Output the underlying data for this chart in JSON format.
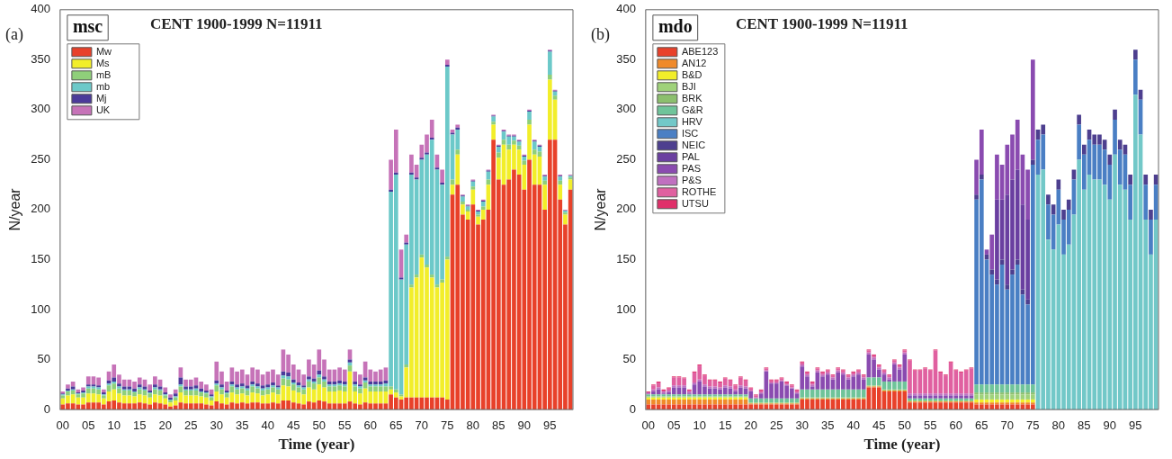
{
  "chart_data": [
    {
      "type": "bar",
      "title": "CENT 1900-1999 N=11911",
      "xlabel": "Time (year)",
      "ylabel": "N/year",
      "legend_title": "msc",
      "annotations": [
        "(a)"
      ],
      "stacked": true,
      "legend": "top left",
      "ylim": [
        0,
        400
      ],
      "yticks": [
        0,
        50,
        100,
        150,
        200,
        250,
        300,
        350,
        400
      ],
      "categories": [
        "00",
        null,
        null,
        null,
        null,
        "05",
        null,
        null,
        null,
        null,
        "10",
        null,
        null,
        null,
        null,
        "15",
        null,
        null,
        null,
        null,
        "20",
        null,
        null,
        null,
        null,
        "25",
        null,
        null,
        null,
        null,
        "30",
        null,
        null,
        null,
        null,
        "35",
        null,
        null,
        null,
        null,
        "40",
        null,
        null,
        null,
        null,
        "45",
        null,
        null,
        null,
        null,
        "50",
        null,
        null,
        null,
        null,
        "55",
        null,
        null,
        null,
        null,
        "60",
        null,
        null,
        null,
        null,
        "65",
        null,
        null,
        null,
        null,
        "70",
        null,
        null,
        null,
        null,
        "75",
        null,
        null,
        null,
        null,
        "80",
        null,
        null,
        null,
        null,
        "85",
        null,
        null,
        null,
        null,
        "90",
        null,
        null,
        null,
        null,
        "95",
        null,
        null,
        null,
        null
      ],
      "series": [
        {
          "name": "Mw",
          "color": "#e8412a",
          "values": [
            5,
            6,
            6,
            5,
            5,
            7,
            7,
            7,
            5,
            8,
            9,
            7,
            6,
            6,
            6,
            7,
            6,
            5,
            7,
            6,
            5,
            3,
            4,
            7,
            6,
            6,
            6,
            6,
            5,
            4,
            8,
            6,
            5,
            7,
            6,
            7,
            6,
            7,
            7,
            6,
            6,
            7,
            6,
            9,
            9,
            7,
            6,
            5,
            8,
            7,
            9,
            8,
            6,
            6,
            6,
            6,
            8,
            6,
            5,
            7,
            6,
            6,
            6,
            6,
            15,
            12,
            10,
            12,
            12,
            12,
            12,
            12,
            12,
            12,
            12,
            10,
            215,
            225,
            195,
            190,
            205,
            185,
            190,
            200,
            270,
            230,
            225,
            230,
            240,
            235,
            220,
            250,
            225,
            225,
            200,
            270,
            270,
            210,
            185,
            220
          ]
        },
        {
          "name": "Ms",
          "color": "#f2ee2a",
          "values": [
            6,
            8,
            9,
            7,
            7,
            9,
            9,
            8,
            6,
            10,
            11,
            9,
            8,
            8,
            7,
            8,
            8,
            7,
            8,
            8,
            6,
            4,
            5,
            10,
            8,
            8,
            8,
            7,
            7,
            5,
            10,
            9,
            7,
            10,
            9,
            9,
            8,
            10,
            9,
            8,
            9,
            10,
            9,
            15,
            14,
            12,
            11,
            10,
            14,
            13,
            16,
            14,
            12,
            12,
            13,
            12,
            30,
            12,
            11,
            14,
            12,
            12,
            12,
            12,
            5,
            5,
            3,
            30,
            110,
            120,
            140,
            130,
            120,
            110,
            115,
            140,
            10,
            30,
            10,
            8,
            15,
            8,
            10,
            25,
            15,
            22,
            40,
            30,
            25,
            25,
            25,
            35,
            30,
            28,
            25,
            60,
            40,
            15,
            10,
            10
          ]
        },
        {
          "name": "mB",
          "color": "#8fcf7a",
          "values": [
            3,
            4,
            4,
            3,
            4,
            5,
            5,
            5,
            3,
            6,
            6,
            5,
            5,
            5,
            4,
            5,
            5,
            4,
            5,
            5,
            3,
            2,
            3,
            6,
            5,
            5,
            5,
            4,
            4,
            3,
            6,
            5,
            4,
            6,
            5,
            5,
            5,
            6,
            5,
            5,
            5,
            5,
            5,
            7,
            7,
            6,
            5,
            5,
            6,
            6,
            7,
            6,
            5,
            5,
            5,
            5,
            6,
            5,
            5,
            6,
            5,
            5,
            5,
            5,
            3,
            3,
            2,
            3,
            3,
            3,
            3,
            3,
            3,
            3,
            3,
            3,
            5,
            5,
            3,
            2,
            3,
            2,
            3,
            5,
            3,
            5,
            5,
            5,
            4,
            4,
            4,
            5,
            5,
            5,
            4,
            5,
            4,
            4,
            2,
            2
          ]
        },
        {
          "name": "mb",
          "color": "#6cc9c9",
          "values": [
            1,
            1,
            1,
            1,
            1,
            2,
            2,
            2,
            1,
            2,
            2,
            2,
            1,
            1,
            1,
            2,
            1,
            1,
            2,
            1,
            1,
            1,
            1,
            2,
            1,
            1,
            2,
            1,
            1,
            1,
            2,
            2,
            1,
            2,
            2,
            2,
            2,
            2,
            2,
            2,
            2,
            2,
            2,
            3,
            3,
            2,
            2,
            2,
            2,
            2,
            3,
            2,
            2,
            2,
            2,
            2,
            3,
            2,
            2,
            2,
            2,
            2,
            2,
            3,
            195,
            215,
            115,
            120,
            110,
            95,
            95,
            110,
            135,
            115,
            95,
            190,
            45,
            20,
            5,
            3,
            5,
            3,
            5,
            8,
            5,
            6,
            8,
            8,
            4,
            4,
            4,
            8,
            8,
            5,
            4,
            23,
            4,
            4,
            2,
            2
          ]
        },
        {
          "name": "Mj",
          "color": "#4b3a9a",
          "values": [
            1,
            2,
            3,
            1,
            2,
            2,
            2,
            2,
            2,
            3,
            4,
            3,
            3,
            3,
            3,
            3,
            3,
            2,
            3,
            3,
            2,
            2,
            3,
            7,
            3,
            3,
            3,
            3,
            2,
            2,
            3,
            3,
            2,
            3,
            3,
            3,
            3,
            3,
            3,
            3,
            3,
            3,
            2,
            4,
            4,
            3,
            3,
            2,
            3,
            3,
            4,
            3,
            3,
            3,
            3,
            3,
            3,
            3,
            2,
            3,
            3,
            3,
            3,
            3,
            2,
            2,
            2,
            2,
            2,
            2,
            2,
            2,
            2,
            2,
            2,
            2,
            2,
            2,
            1,
            1,
            1,
            1,
            1,
            1,
            1,
            1,
            1,
            1,
            1,
            1,
            1,
            1,
            1,
            1,
            1,
            1,
            1,
            1,
            0,
            0
          ]
        },
        {
          "name": "UK",
          "color": "#c673b8",
          "values": [
            2,
            4,
            5,
            3,
            3,
            8,
            8,
            8,
            3,
            9,
            13,
            9,
            7,
            7,
            7,
            7,
            7,
            6,
            8,
            7,
            5,
            3,
            4,
            10,
            7,
            7,
            8,
            7,
            6,
            5,
            19,
            13,
            9,
            14,
            13,
            14,
            11,
            14,
            14,
            11,
            13,
            13,
            11,
            22,
            18,
            15,
            13,
            11,
            17,
            14,
            21,
            17,
            12,
            12,
            13,
            12,
            10,
            10,
            10,
            16,
            12,
            10,
            12,
            13,
            30,
            43,
            28,
            8,
            18,
            13,
            13,
            18,
            18,
            13,
            13,
            5,
            3,
            3,
            1,
            1,
            1,
            1,
            1,
            1,
            1,
            1,
            1,
            1,
            1,
            1,
            1,
            1,
            1,
            1,
            1,
            1,
            1,
            1,
            1,
            1
          ]
        }
      ]
    },
    {
      "type": "bar",
      "title": "CENT 1900-1999 N=11911",
      "xlabel": "Time (year)",
      "ylabel": "N/year",
      "legend_title": "mdo",
      "annotations": [
        "(b)"
      ],
      "stacked": true,
      "legend": "top left",
      "ylim": [
        0,
        400
      ],
      "yticks": [
        0,
        50,
        100,
        150,
        200,
        250,
        300,
        350,
        400
      ],
      "categories": [
        "00",
        null,
        null,
        null,
        null,
        "05",
        null,
        null,
        null,
        null,
        "10",
        null,
        null,
        null,
        null,
        "15",
        null,
        null,
        null,
        null,
        "20",
        null,
        null,
        null,
        null,
        "25",
        null,
        null,
        null,
        null,
        "30",
        null,
        null,
        null,
        null,
        "35",
        null,
        null,
        null,
        null,
        "40",
        null,
        null,
        null,
        null,
        "45",
        null,
        null,
        null,
        null,
        "50",
        null,
        null,
        null,
        null,
        "55",
        null,
        null,
        null,
        null,
        "60",
        null,
        null,
        null,
        null,
        "65",
        null,
        null,
        null,
        null,
        "70",
        null,
        null,
        null,
        null,
        "75",
        null,
        null,
        null,
        null,
        "80",
        null,
        null,
        null,
        null,
        "85",
        null,
        null,
        null,
        null,
        "90",
        null,
        null,
        null,
        null,
        "95",
        null,
        null,
        null,
        null
      ],
      "series": [
        {
          "name": "ABE123",
          "color": "#e8412a",
          "values": [
            5,
            5,
            5,
            5,
            5,
            5,
            5,
            5,
            5,
            5,
            5,
            5,
            5,
            5,
            5,
            5,
            5,
            5,
            5,
            5,
            5,
            5,
            5,
            5,
            5,
            5,
            5,
            5,
            5,
            5,
            10,
            10,
            10,
            10,
            10,
            10,
            10,
            10,
            10,
            10,
            10,
            10,
            10,
            22,
            22,
            22,
            18,
            18,
            18,
            18,
            18,
            7,
            7,
            7,
            7,
            7,
            7,
            7,
            7,
            7,
            7,
            7,
            7,
            7,
            5,
            5,
            5,
            5,
            5,
            5,
            5,
            5,
            5,
            5,
            5,
            5,
            0,
            0,
            0,
            0,
            0,
            0,
            0,
            0,
            0,
            0,
            0,
            0,
            0,
            0,
            0,
            0,
            0,
            0,
            0,
            0,
            0,
            0,
            0,
            0
          ]
        },
        {
          "name": "AN12",
          "color": "#f08a2a",
          "values": [
            5,
            5,
            5,
            5,
            5,
            5,
            5,
            5,
            5,
            5,
            5,
            5,
            5,
            5,
            5,
            5,
            5,
            5,
            5,
            5,
            1,
            1,
            1,
            1,
            1,
            1,
            1,
            1,
            1,
            1,
            1,
            1,
            1,
            1,
            1,
            1,
            1,
            1,
            1,
            1,
            1,
            1,
            1,
            1,
            1,
            1,
            1,
            1,
            1,
            1,
            1,
            1,
            1,
            1,
            1,
            1,
            1,
            1,
            1,
            1,
            1,
            1,
            1,
            1,
            2,
            2,
            2,
            2,
            2,
            2,
            2,
            2,
            2,
            2,
            2,
            2,
            0,
            0,
            0,
            0,
            0,
            0,
            0,
            0,
            0,
            0,
            0,
            0,
            0,
            0,
            0,
            0,
            0,
            0,
            0,
            0,
            0,
            0,
            0,
            0
          ]
        },
        {
          "name": "B&D",
          "color": "#f2ee2a",
          "values": [
            2,
            2,
            2,
            2,
            2,
            2,
            2,
            2,
            2,
            2,
            2,
            2,
            2,
            2,
            2,
            2,
            2,
            2,
            2,
            2,
            0,
            0,
            0,
            0,
            0,
            0,
            0,
            0,
            0,
            0,
            0,
            0,
            0,
            0,
            0,
            0,
            0,
            0,
            0,
            0,
            0,
            0,
            0,
            0,
            0,
            0,
            0,
            0,
            0,
            0,
            0,
            0,
            0,
            0,
            0,
            0,
            0,
            0,
            0,
            0,
            0,
            0,
            0,
            0,
            3,
            3,
            3,
            3,
            3,
            3,
            3,
            3,
            3,
            3,
            3,
            3,
            0,
            0,
            0,
            0,
            0,
            0,
            0,
            0,
            0,
            0,
            0,
            0,
            0,
            0,
            0,
            0,
            0,
            0,
            0,
            0,
            0,
            0,
            0,
            0
          ]
        },
        {
          "name": "BJI",
          "color": "#9fd27a",
          "values": [
            1,
            1,
            1,
            1,
            1,
            1,
            1,
            1,
            1,
            1,
            1,
            1,
            1,
            1,
            1,
            1,
            1,
            1,
            1,
            1,
            1,
            1,
            1,
            1,
            1,
            1,
            1,
            1,
            1,
            1,
            1,
            1,
            1,
            1,
            1,
            1,
            1,
            1,
            1,
            1,
            1,
            1,
            1,
            1,
            1,
            1,
            1,
            1,
            1,
            1,
            1,
            1,
            1,
            1,
            1,
            1,
            1,
            1,
            1,
            1,
            1,
            1,
            1,
            1,
            5,
            5,
            5,
            5,
            5,
            5,
            5,
            5,
            5,
            5,
            5,
            5,
            0,
            0,
            0,
            0,
            0,
            0,
            0,
            0,
            0,
            0,
            0,
            0,
            0,
            0,
            0,
            0,
            0,
            0,
            0,
            0,
            0,
            0,
            0,
            0
          ]
        },
        {
          "name": "BRK",
          "color": "#8cbf6e",
          "values": [
            0,
            0,
            0,
            0,
            0,
            0,
            0,
            0,
            0,
            0,
            0,
            0,
            0,
            0,
            0,
            0,
            0,
            0,
            0,
            0,
            0,
            0,
            0,
            0,
            0,
            0,
            0,
            0,
            0,
            0,
            0,
            0,
            0,
            0,
            0,
            0,
            0,
            0,
            0,
            0,
            0,
            0,
            0,
            0,
            0,
            0,
            0,
            0,
            0,
            0,
            0,
            0,
            0,
            0,
            0,
            0,
            0,
            0,
            0,
            0,
            0,
            0,
            0,
            0,
            2,
            2,
            2,
            2,
            2,
            2,
            2,
            2,
            2,
            2,
            2,
            2,
            0,
            0,
            0,
            0,
            0,
            0,
            0,
            0,
            0,
            0,
            0,
            0,
            0,
            0,
            0,
            0,
            0,
            0,
            0,
            0,
            0,
            0,
            0,
            0
          ]
        },
        {
          "name": "G&R",
          "color": "#6fc49a",
          "values": [
            2,
            2,
            2,
            2,
            2,
            2,
            2,
            2,
            2,
            2,
            2,
            2,
            2,
            2,
            2,
            2,
            2,
            2,
            2,
            2,
            4,
            4,
            4,
            4,
            4,
            4,
            4,
            4,
            4,
            4,
            8,
            8,
            8,
            8,
            8,
            8,
            8,
            8,
            8,
            8,
            8,
            8,
            8,
            8,
            8,
            8,
            8,
            8,
            8,
            8,
            8,
            2,
            2,
            2,
            2,
            2,
            2,
            2,
            2,
            2,
            2,
            2,
            2,
            2,
            8,
            8,
            8,
            8,
            8,
            8,
            8,
            8,
            8,
            8,
            8,
            8,
            0,
            0,
            0,
            0,
            0,
            0,
            0,
            0,
            0,
            0,
            0,
            0,
            0,
            0,
            0,
            0,
            0,
            0,
            0,
            0,
            0,
            0,
            0,
            0
          ]
        },
        {
          "name": "HRV",
          "color": "#72c8c8",
          "values": [
            0,
            0,
            0,
            0,
            0,
            0,
            0,
            0,
            0,
            0,
            0,
            0,
            0,
            0,
            0,
            0,
            0,
            0,
            0,
            0,
            0,
            0,
            0,
            0,
            0,
            0,
            0,
            0,
            0,
            0,
            0,
            0,
            0,
            0,
            0,
            0,
            0,
            0,
            0,
            0,
            0,
            0,
            0,
            0,
            0,
            0,
            0,
            0,
            0,
            0,
            0,
            0,
            0,
            0,
            0,
            0,
            0,
            0,
            0,
            0,
            0,
            0,
            0,
            0,
            0,
            0,
            0,
            0,
            0,
            0,
            0,
            0,
            0,
            0,
            0,
            0,
            235,
            240,
            170,
            160,
            185,
            155,
            165,
            195,
            250,
            220,
            235,
            230,
            230,
            225,
            210,
            255,
            225,
            220,
            190,
            315,
            275,
            190,
            155,
            190
          ]
        },
        {
          "name": "ISC",
          "color": "#4a7fc4",
          "values": [
            0,
            0,
            0,
            0,
            0,
            0,
            0,
            0,
            0,
            0,
            0,
            0,
            0,
            0,
            0,
            0,
            0,
            0,
            0,
            0,
            0,
            0,
            0,
            0,
            0,
            0,
            0,
            0,
            0,
            0,
            0,
            0,
            0,
            0,
            0,
            0,
            0,
            0,
            0,
            0,
            0,
            0,
            0,
            0,
            0,
            0,
            0,
            0,
            0,
            0,
            0,
            0,
            0,
            0,
            0,
            0,
            0,
            0,
            0,
            0,
            0,
            0,
            0,
            0,
            185,
            205,
            125,
            110,
            100,
            120,
            95,
            110,
            120,
            90,
            80,
            220,
            35,
            35,
            35,
            35,
            35,
            35,
            35,
            35,
            35,
            35,
            35,
            35,
            35,
            35,
            35,
            35,
            35,
            35,
            35,
            35,
            35,
            35,
            35,
            35
          ]
        },
        {
          "name": "NEIC",
          "color": "#4d3f8f",
          "values": [
            0,
            0,
            0,
            0,
            0,
            0,
            0,
            0,
            0,
            0,
            0,
            0,
            0,
            0,
            0,
            0,
            0,
            0,
            0,
            0,
            0,
            0,
            0,
            0,
            0,
            0,
            0,
            0,
            0,
            0,
            0,
            0,
            0,
            0,
            0,
            0,
            0,
            0,
            0,
            0,
            0,
            0,
            0,
            0,
            0,
            0,
            0,
            0,
            0,
            0,
            0,
            0,
            0,
            0,
            0,
            0,
            0,
            0,
            0,
            0,
            0,
            0,
            0,
            0,
            5,
            5,
            5,
            5,
            5,
            5,
            5,
            5,
            5,
            5,
            5,
            5,
            10,
            10,
            10,
            10,
            10,
            10,
            10,
            10,
            10,
            10,
            10,
            10,
            10,
            10,
            10,
            10,
            10,
            10,
            10,
            10,
            10,
            10,
            10,
            10
          ]
        },
        {
          "name": "PAL",
          "color": "#6a3fa0",
          "values": [
            0,
            0,
            0,
            0,
            0,
            0,
            0,
            0,
            0,
            0,
            0,
            0,
            0,
            0,
            0,
            0,
            0,
            0,
            0,
            0,
            0,
            0,
            0,
            0,
            0,
            0,
            0,
            0,
            0,
            0,
            0,
            0,
            0,
            0,
            0,
            0,
            0,
            0,
            0,
            0,
            0,
            0,
            0,
            0,
            0,
            0,
            0,
            0,
            0,
            0,
            0,
            0,
            0,
            0,
            0,
            0,
            0,
            0,
            0,
            0,
            0,
            0,
            0,
            0,
            0,
            0,
            0,
            0,
            80,
            60,
            90,
            90,
            90,
            85,
            80,
            0,
            0,
            0,
            0,
            0,
            0,
            0,
            0,
            0,
            0,
            0,
            0,
            0,
            0,
            0,
            0,
            0,
            0,
            0,
            0,
            0,
            0,
            0,
            0,
            0
          ]
        },
        {
          "name": "PAS",
          "color": "#8a4bb0",
          "values": [
            0,
            3,
            5,
            1,
            2,
            7,
            7,
            7,
            1,
            10,
            13,
            8,
            6,
            6,
            5,
            7,
            6,
            3,
            7,
            6,
            7,
            0,
            5,
            27,
            15,
            15,
            17,
            13,
            10,
            5,
            23,
            13,
            3,
            17,
            13,
            15,
            10,
            17,
            15,
            10,
            13,
            15,
            10,
            23,
            18,
            8,
            7,
            2,
            17,
            12,
            27,
            3,
            3,
            3,
            3,
            3,
            3,
            3,
            3,
            3,
            3,
            3,
            3,
            3,
            35,
            45,
            5,
            35,
            45,
            35,
            50,
            45,
            50,
            50,
            50,
            100,
            0,
            0,
            0,
            0,
            0,
            0,
            0,
            0,
            0,
            0,
            0,
            0,
            0,
            0,
            0,
            0,
            0,
            0,
            0,
            0,
            0,
            0,
            0,
            0
          ]
        },
        {
          "name": "P&S",
          "color": "#c070c0",
          "values": [
            2,
            2,
            2,
            2,
            2,
            2,
            2,
            2,
            2,
            2,
            2,
            2,
            2,
            2,
            2,
            2,
            2,
            2,
            2,
            2,
            1,
            1,
            1,
            1,
            1,
            1,
            1,
            1,
            1,
            1,
            2,
            2,
            2,
            2,
            2,
            2,
            2,
            2,
            2,
            2,
            2,
            2,
            2,
            2,
            2,
            2,
            2,
            2,
            2,
            2,
            2,
            2,
            2,
            2,
            2,
            2,
            2,
            2,
            2,
            2,
            2,
            2,
            2,
            2,
            0,
            0,
            0,
            0,
            0,
            0,
            0,
            0,
            0,
            0,
            0,
            0,
            0,
            0,
            0,
            0,
            0,
            0,
            0,
            0,
            0,
            0,
            0,
            0,
            0,
            0,
            0,
            0,
            0,
            0,
            0,
            0,
            0,
            0,
            0,
            0
          ]
        },
        {
          "name": "ROTHE",
          "color": "#e060a0",
          "values": [
            0,
            4,
            5,
            1,
            2,
            8,
            8,
            7,
            1,
            10,
            14,
            9,
            6,
            6,
            5,
            7,
            6,
            4,
            8,
            6,
            2,
            2,
            2,
            2,
            2,
            2,
            2,
            2,
            2,
            2,
            2,
            2,
            2,
            2,
            2,
            2,
            2,
            2,
            2,
            2,
            2,
            2,
            2,
            2,
            2,
            2,
            2,
            2,
            2,
            2,
            2,
            33,
            23,
            23,
            25,
            23,
            43,
            21,
            18,
            31,
            23,
            21,
            23,
            25,
            0,
            0,
            0,
            0,
            0,
            0,
            0,
            0,
            0,
            0,
            0,
            0,
            0,
            0,
            0,
            0,
            0,
            0,
            0,
            0,
            0,
            0,
            0,
            0,
            0,
            0,
            0,
            0,
            0,
            0,
            0,
            0,
            0,
            0,
            0,
            0
          ]
        },
        {
          "name": "UTSU",
          "color": "#e0306a",
          "values": [
            1,
            1,
            1,
            1,
            1,
            1,
            1,
            1,
            1,
            1,
            1,
            1,
            1,
            1,
            1,
            1,
            1,
            1,
            1,
            1,
            1,
            1,
            1,
            1,
            1,
            1,
            1,
            1,
            1,
            1,
            1,
            1,
            1,
            1,
            1,
            1,
            1,
            1,
            1,
            1,
            1,
            1,
            1,
            1,
            1,
            1,
            1,
            1,
            1,
            1,
            1,
            1,
            1,
            1,
            1,
            1,
            1,
            1,
            1,
            1,
            1,
            1,
            1,
            1,
            0,
            0,
            0,
            0,
            0,
            0,
            0,
            0,
            0,
            0,
            0,
            0,
            0,
            0,
            0,
            0,
            0,
            0,
            0,
            0,
            0,
            0,
            0,
            0,
            0,
            0,
            0,
            0,
            0,
            0,
            0,
            0,
            0,
            0,
            0,
            0
          ]
        }
      ]
    }
  ]
}
